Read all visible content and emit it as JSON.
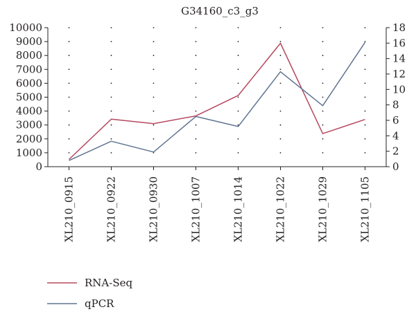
{
  "chart_data": {
    "type": "line",
    "title": "G34160_c3_g3",
    "categories": [
      "XL210_0915",
      "XL210_0922",
      "XL210_0930",
      "XL210_1007",
      "XL210_1014",
      "XL210_1022",
      "XL210_1029",
      "XL210_1105"
    ],
    "y_left": {
      "min": 0,
      "max": 10000,
      "step": 1000
    },
    "y_right": {
      "min": 0,
      "max": 18,
      "step": 2
    },
    "grid": "dotted",
    "legend_position": "bottom-left",
    "series": [
      {
        "name": "RNA-Seq",
        "axis": "left",
        "color": "#b5485f",
        "values": [
          520,
          3420,
          3100,
          3650,
          5120,
          8880,
          2380,
          3400
        ]
      },
      {
        "name": "qPCR",
        "axis": "right",
        "color": "#5f7491",
        "values": [
          0.8,
          3.3,
          1.9,
          6.5,
          5.2,
          12.3,
          7.9,
          16.1
        ]
      }
    ]
  }
}
